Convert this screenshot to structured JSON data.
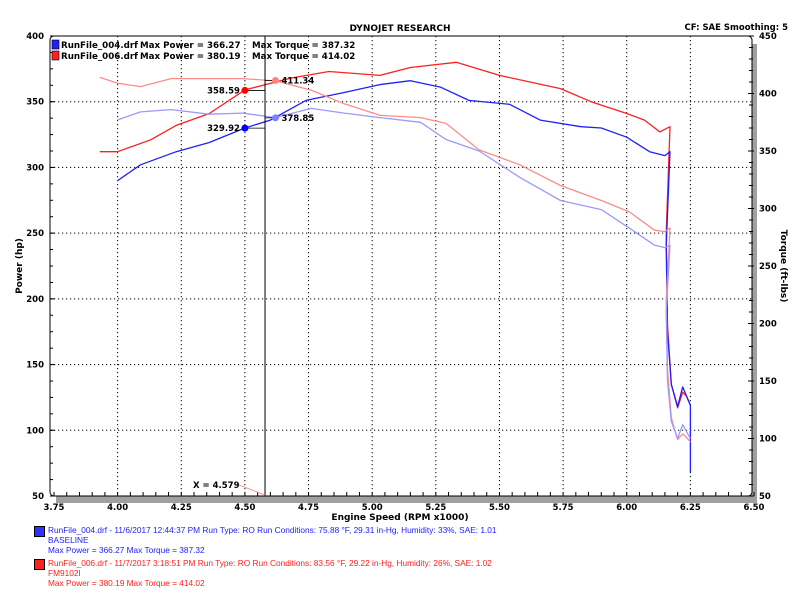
{
  "chart_data": {
    "type": "line",
    "title": "DYNOJET RESEARCH",
    "subtitle_right": "CF: SAE  Smoothing: 5",
    "xlabel": "Engine Speed (RPM x1000)",
    "ylabel_left": "Power (hp)",
    "ylabel_right": "Torque (ft-lbs)",
    "xlim": [
      3.75,
      6.5
    ],
    "ylim_left": [
      50,
      400
    ],
    "ylim_right": [
      50,
      450
    ],
    "grid": true,
    "x_ticks": [
      "3.75",
      "4.00",
      "4.25",
      "4.50",
      "4.75",
      "5.00",
      "5.25",
      "5.50",
      "5.75",
      "6.00",
      "6.25",
      "6.50"
    ],
    "y_ticks_left": [
      "50",
      "100",
      "150",
      "200",
      "250",
      "300",
      "350",
      "400"
    ],
    "y_ticks_right": [
      "50",
      "100",
      "150",
      "200",
      "250",
      "300",
      "350",
      "400",
      "450"
    ],
    "top_legend": [
      {
        "file": "RunFile_004.drf",
        "power": "Max Power = 366.27",
        "torque": "Max Torque = 387.32",
        "color": "#2020ff"
      },
      {
        "file": "RunFile_006.drf",
        "power": "Max Power = 380.19",
        "torque": "Max Torque = 414.02",
        "color": "#ff2020"
      }
    ],
    "cursor": {
      "x": 4.579,
      "label": "X = 4.579"
    },
    "markers": [
      {
        "x": 4.5,
        "y": 358.59,
        "axis": "left",
        "label": "358.59",
        "color": "#ff0000",
        "side": "left"
      },
      {
        "x": 4.62,
        "y": 411.34,
        "axis": "right",
        "label": "411.34",
        "color": "#ff8080",
        "side": "right"
      },
      {
        "x": 4.5,
        "y": 329.92,
        "axis": "left",
        "label": "329.92",
        "color": "#0000ff",
        "side": "left"
      },
      {
        "x": 4.62,
        "y": 378.85,
        "axis": "right",
        "label": "378.85",
        "color": "#8080ff",
        "side": "right"
      }
    ],
    "series": [
      {
        "run": "RunFile_006.drf",
        "measure": "power",
        "axis": "left",
        "color": "#ff2020",
        "x": [
          3.93,
          4.0,
          4.13,
          4.23,
          4.36,
          4.5,
          4.68,
          4.83,
          5.03,
          5.15,
          5.33,
          5.5,
          5.74,
          5.86,
          6.0,
          6.07,
          6.13,
          6.17,
          6.155,
          6.16,
          6.175,
          6.2,
          6.22,
          6.235,
          6.25
        ],
        "y": [
          312,
          312,
          321,
          332,
          341,
          359,
          368,
          373,
          370,
          376,
          380,
          370,
          360,
          350,
          341,
          336,
          327,
          331,
          250,
          180,
          135,
          117,
          129,
          126,
          119
        ]
      },
      {
        "run": "RunFile_004.drf",
        "measure": "power",
        "axis": "left",
        "color": "#2020ff",
        "x": [
          4.0,
          4.09,
          4.23,
          4.36,
          4.5,
          4.6,
          4.74,
          4.89,
          5.03,
          5.15,
          5.27,
          5.38,
          5.54,
          5.66,
          5.82,
          5.9,
          6.0,
          6.09,
          6.15,
          6.17,
          6.155,
          6.16,
          6.175,
          6.2,
          6.22,
          6.235,
          6.25,
          6.25
        ],
        "y": [
          290,
          302,
          312,
          319,
          330,
          336,
          351,
          357,
          363,
          366,
          361,
          351,
          348,
          336,
          331,
          330,
          323,
          312,
          309,
          312,
          240,
          175,
          135,
          118,
          133,
          126,
          119,
          68
        ]
      },
      {
        "run": "RunFile_006.drf",
        "measure": "torque",
        "axis": "right",
        "color": "#ff8c8c",
        "x": [
          3.93,
          4.0,
          4.09,
          4.21,
          4.36,
          4.49,
          4.62,
          4.76,
          4.89,
          5.03,
          5.19,
          5.29,
          5.42,
          5.58,
          5.74,
          5.9,
          6.01,
          6.11,
          6.15,
          6.17,
          6.155,
          6.16,
          6.175,
          6.2,
          6.22,
          6.235,
          6.25
        ],
        "y": [
          414,
          409,
          406,
          413,
          413,
          413,
          411,
          403,
          391,
          381,
          379,
          374,
          351,
          338,
          320,
          307,
          297,
          281,
          280,
          283,
          220,
          160,
          118,
          99,
          104,
          101,
          97
        ]
      },
      {
        "run": "RunFile_004.drf",
        "measure": "torque",
        "axis": "right",
        "color": "#9a9aff",
        "x": [
          4.0,
          4.09,
          4.21,
          4.36,
          4.49,
          4.62,
          4.76,
          4.89,
          5.03,
          5.19,
          5.29,
          5.42,
          5.58,
          5.74,
          5.9,
          6.01,
          6.11,
          6.15,
          6.17,
          6.155,
          6.16,
          6.175,
          6.2,
          6.22,
          6.235,
          6.25
        ],
        "y": [
          377,
          384,
          386,
          382,
          383,
          379,
          387,
          383,
          379,
          375,
          360,
          350,
          327,
          307,
          299,
          283,
          268,
          266,
          268,
          210,
          150,
          115,
          100,
          112,
          106,
          100
        ]
      }
    ]
  },
  "bottom_legend": [
    {
      "color": "#2020ff",
      "swatch": "#3030ff",
      "line1": "RunFile_004.drf - 11/6/2017 12:44:37 PM  Run Type: RO  Run Conditions: 75.88 °F, 29.31 in-Hg,  Humidity:  33%, SAE: 1.01",
      "line2": "BASELINE",
      "line3": "Max Power = 366.27  Max Torque = 387.32"
    },
    {
      "color": "#ff2020",
      "swatch": "#ff2020",
      "line1": "RunFile_006.drf - 11/7/2017 3:18:51 PM  Run Type: RO  Run Conditions: 83.56 °F, 29.22 in-Hg,  Humidity:  26%, SAE: 1.02",
      "line2": "FM9102I",
      "line3": "Max Power = 380.19  Max Torque = 414.02"
    }
  ]
}
